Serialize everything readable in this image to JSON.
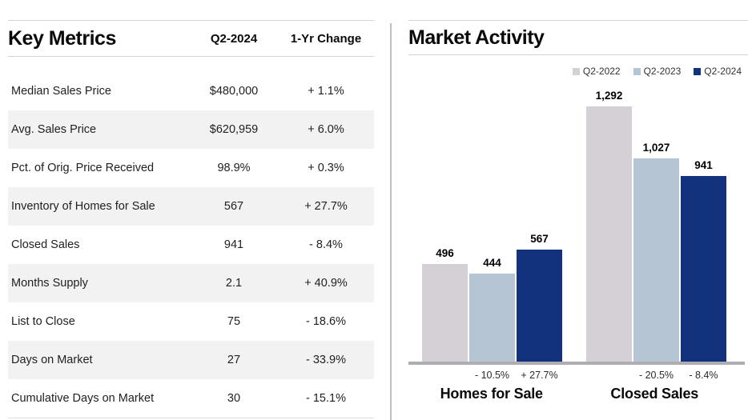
{
  "key_metrics": {
    "title": "Key Metrics",
    "columns": [
      "Q2-2024",
      "1-Yr Change"
    ],
    "rows": [
      {
        "label": "Median Sales Price",
        "value": "$480,000",
        "change": "+ 1.1%"
      },
      {
        "label": "Avg. Sales Price",
        "value": "$620,959",
        "change": "+ 6.0%"
      },
      {
        "label": "Pct. of Orig. Price Received",
        "value": "98.9%",
        "change": "+ 0.3%"
      },
      {
        "label": "Inventory of Homes for Sale",
        "value": "567",
        "change": "+ 27.7%"
      },
      {
        "label": "Closed Sales",
        "value": "941",
        "change": "- 8.4%"
      },
      {
        "label": "Months Supply",
        "value": "2.1",
        "change": "+ 40.9%"
      },
      {
        "label": "List to Close",
        "value": "75",
        "change": "- 18.6%"
      },
      {
        "label": "Days on Market",
        "value": "27",
        "change": "- 33.9%"
      },
      {
        "label": "Cumulative Days on Market",
        "value": "30",
        "change": "- 15.1%"
      }
    ],
    "stripe_color": "#f2f2f2"
  },
  "market_activity": {
    "title": "Market Activity"
  },
  "chart_data": {
    "type": "bar",
    "title": "Market Activity",
    "categories": [
      "Homes for Sale",
      "Closed Sales"
    ],
    "series": [
      {
        "name": "Q2-2022",
        "color": "#d5d0d6",
        "values": [
          496,
          1292
        ],
        "value_labels": [
          "496",
          "1,292"
        ],
        "change_labels": [
          "",
          ""
        ]
      },
      {
        "name": "Q2-2023",
        "color": "#b6c5d4",
        "values": [
          444,
          1027
        ],
        "value_labels": [
          "444",
          "1,027"
        ],
        "change_labels": [
          "- 10.5%",
          "- 20.5%"
        ]
      },
      {
        "name": "Q2-2024",
        "color": "#12327e",
        "values": [
          567,
          941
        ],
        "value_labels": [
          "567",
          "941"
        ],
        "change_labels": [
          "+ 27.7%",
          "- 8.4%"
        ]
      }
    ],
    "ylim": [
      0,
      1292
    ],
    "grid": false,
    "legend_position": "top-right",
    "value_labels": true,
    "axis_color": "#aeadb1"
  }
}
